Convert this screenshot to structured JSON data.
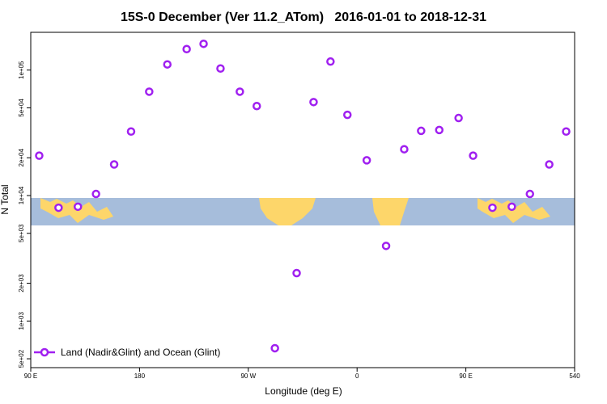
{
  "chart_data": {
    "type": "scatter",
    "title": "15S-0 December (Ver 11.2_ATom)   2016-01-01 to 2018-12-31",
    "x_label": "Longitude (deg E)",
    "y_label": "N Total",
    "log_y": true,
    "legend_position": "lower left",
    "xlim": [
      90,
      540
    ],
    "ylim": [
      425,
      200000
    ],
    "xticks": [
      {
        "value": 90,
        "label": "90 E"
      },
      180,
      {
        "value": 270,
        "label": "90 W"
      },
      {
        "value": 360,
        "label": "0"
      },
      {
        "value": 450,
        "label": "90 E"
      },
      540
    ],
    "yticks": [
      {
        "value": 500,
        "label": "5e+02"
      },
      {
        "value": 1000,
        "label": "1e+03"
      },
      {
        "value": 2000,
        "label": "2e+03"
      },
      {
        "value": 5000,
        "label": "5e+03"
      },
      {
        "value": 10000,
        "label": "1e+04"
      },
      {
        "value": 20000,
        "label": "2e+04"
      },
      {
        "value": 50000,
        "label": "5e+04"
      },
      {
        "value": 100000,
        "label": "1e+05"
      }
    ],
    "series": [
      {
        "name": "Land (Nadir&Glint) and Ocean (Glint)",
        "color": "#a020f0",
        "x": [
          97,
          113,
          129,
          144,
          159,
          173,
          188,
          203,
          219,
          233,
          247,
          263,
          277,
          292,
          310,
          324,
          338,
          352,
          368,
          384,
          399,
          413,
          428,
          444,
          456,
          472,
          488,
          503,
          519,
          533
        ],
        "values": [
          20800,
          8000,
          8150,
          10300,
          17700,
          32400,
          67300,
          111000,
          147000,
          162000,
          103000,
          67300,
          51700,
          607,
          2410,
          55600,
          117000,
          44000,
          19100,
          3970,
          23400,
          32800,
          33300,
          41500,
          20800,
          8000,
          8150,
          10300,
          17700,
          32400
        ]
      }
    ]
  }
}
